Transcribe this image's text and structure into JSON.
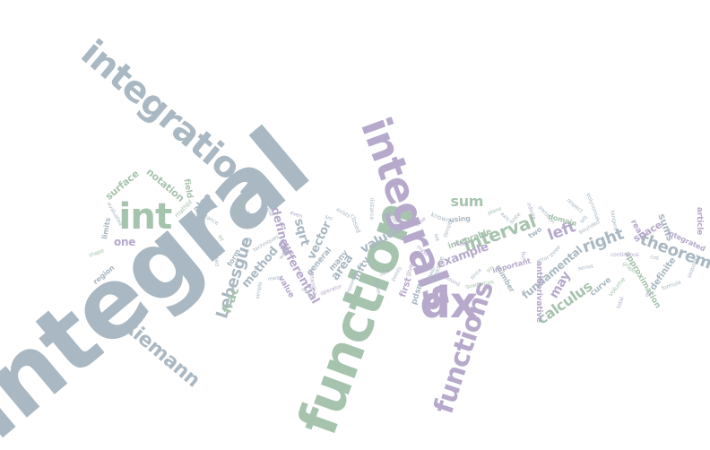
{
  "cloud": {
    "palette": {
      "slate": "#a9b8c2",
      "lavender": "#b6a9cc",
      "sage": "#a6c3ad",
      "slate_light": "#bcc7cf",
      "lavender_light": "#cbbfe0",
      "sage_light": "#c0d6c4"
    },
    "words": [
      {
        "text": "integral",
        "color": "slate"
      },
      {
        "text": "integration",
        "color": "slate"
      },
      {
        "text": "function",
        "color": "sage"
      },
      {
        "text": "integrals",
        "color": "lavender"
      },
      {
        "text": "dx",
        "color": "lavender"
      },
      {
        "text": "functions",
        "color": "lavender"
      },
      {
        "text": "int",
        "color": "sage"
      },
      {
        "text": "Riemann",
        "color": "slate"
      },
      {
        "text": "Lebesgue",
        "color": "slate"
      },
      {
        "text": "interval",
        "color": "sage"
      },
      {
        "text": "left",
        "color": "lavender"
      },
      {
        "text": "right",
        "color": "slate"
      },
      {
        "text": "theorem",
        "color": "slate"
      },
      {
        "text": "calculus",
        "color": "sage"
      },
      {
        "text": "sum",
        "color": "sage"
      },
      {
        "text": "fundamental",
        "color": "slate"
      },
      {
        "text": "frac",
        "color": "sage"
      },
      {
        "text": "method",
        "color": "slate"
      },
      {
        "text": "differential",
        "color": "lavender"
      },
      {
        "text": "defined",
        "color": "lavender"
      },
      {
        "text": "sqrt",
        "color": "slate"
      },
      {
        "text": "vector",
        "color": "slate"
      },
      {
        "text": "values",
        "color": "slate"
      },
      {
        "text": "area",
        "color": "slate"
      },
      {
        "text": "example",
        "color": "lavender"
      },
      {
        "text": "may",
        "color": "lavender"
      },
      {
        "text": "surface",
        "color": "sage"
      },
      {
        "text": "notation",
        "color": "sage"
      },
      {
        "text": "also",
        "color": "slate"
      },
      {
        "text": "one",
        "color": "lavender"
      },
      {
        "text": "first",
        "color": "lavender"
      },
      {
        "text": "infty",
        "color": "slate"
      },
      {
        "text": "space",
        "color": "lavender"
      },
      {
        "text": "sums",
        "color": "slate"
      },
      {
        "text": "antiderivative",
        "color": "lavender"
      },
      {
        "text": "definite",
        "color": "slate"
      },
      {
        "text": "approximation",
        "color": "sage"
      },
      {
        "text": "article",
        "color": "lavender"
      },
      {
        "text": "field",
        "color": "sage"
      },
      {
        "text": "integrable",
        "color": "sage"
      },
      {
        "text": "general",
        "color": "slate"
      },
      {
        "text": "many",
        "color": "slate"
      },
      {
        "text": "value",
        "color": "lavender"
      },
      {
        "text": "pdsn",
        "color": "slate"
      },
      {
        "text": "curve",
        "color": "slate"
      },
      {
        "text": "real",
        "color": "lavender"
      },
      {
        "text": "integrated",
        "color": "lavender"
      },
      {
        "text": "using",
        "color": "slate"
      },
      {
        "text": "domain",
        "color": "sage"
      },
      {
        "text": "region",
        "color": "slate"
      },
      {
        "text": "form",
        "color": "slate"
      },
      {
        "text": "limits",
        "color": "slate"
      },
      {
        "text": "important",
        "color": "lavender"
      },
      {
        "text": "number",
        "color": "slate"
      },
      {
        "text": "two",
        "color": "slate"
      },
      {
        "text": "volume",
        "color": "sage"
      },
      {
        "text": "measure",
        "color": "slate"
      },
      {
        "text": "known",
        "color": "slate"
      },
      {
        "text": "work",
        "color": "lavender"
      },
      {
        "text": "closed",
        "color": "slate"
      },
      {
        "text": "width",
        "color": "slate"
      },
      {
        "text": "given",
        "color": "lavender"
      },
      {
        "text": "mathbf",
        "color": "sage"
      },
      {
        "text": "used",
        "color": "slate"
      },
      {
        "text": "line",
        "color": "slate"
      },
      {
        "text": "lim",
        "color": "slate"
      },
      {
        "text": "rule",
        "color": "slate"
      },
      {
        "text": "case",
        "color": "lavender"
      },
      {
        "text": "points",
        "color": "slate"
      },
      {
        "text": "sin",
        "color": "sage"
      },
      {
        "text": "exists",
        "color": "slate"
      },
      {
        "text": "upper",
        "color": "slate"
      },
      {
        "text": "lower",
        "color": "slate"
      },
      {
        "text": "bound",
        "color": "lavender"
      },
      {
        "text": "partition",
        "color": "slate"
      },
      {
        "text": "finite",
        "color": "slate"
      },
      {
        "text": "infinite",
        "color": "lavender"
      },
      {
        "text": "series",
        "color": "slate"
      },
      {
        "text": "graph",
        "color": "sage"
      },
      {
        "text": "tangent",
        "color": "slate"
      },
      {
        "text": "dy",
        "color": "lavender"
      },
      {
        "text": "cos",
        "color": "slate"
      },
      {
        "text": "log",
        "color": "slate"
      },
      {
        "text": "let",
        "color": "sage"
      },
      {
        "text": "step",
        "color": "slate"
      },
      {
        "text": "even",
        "color": "lavender"
      },
      {
        "text": "simple",
        "color": "slate"
      },
      {
        "text": "point",
        "color": "slate"
      },
      {
        "text": "operator",
        "color": "lavender"
      },
      {
        "text": "distance",
        "color": "slate"
      },
      {
        "text": "quadrature",
        "color": "sage"
      },
      {
        "text": "axis",
        "color": "slate"
      },
      {
        "text": "result",
        "color": "lavender"
      },
      {
        "text": "set",
        "color": "slate"
      },
      {
        "text": "since",
        "color": "slate"
      },
      {
        "text": "bounded",
        "color": "slate"
      },
      {
        "text": "continuous",
        "color": "lavender"
      },
      {
        "text": "sequence",
        "color": "slate"
      },
      {
        "text": "evaluated",
        "color": "slate"
      },
      {
        "text": "shape",
        "color": "sage"
      },
      {
        "text": "terms",
        "color": "slate"
      },
      {
        "text": "mean",
        "color": "slate"
      },
      {
        "text": "rectangles",
        "color": "lavender"
      },
      {
        "text": "choose",
        "color": "slate"
      },
      {
        "text": "rather",
        "color": "slate"
      },
      {
        "text": "plane",
        "color": "sage"
      },
      {
        "text": "flux",
        "color": "lavender"
      },
      {
        "text": "three",
        "color": "slate"
      },
      {
        "text": "respect",
        "color": "slate"
      },
      {
        "text": "total",
        "color": "lavender"
      },
      {
        "text": "formula",
        "color": "slate"
      },
      {
        "text": "instance",
        "color": "slate"
      },
      {
        "text": "variable",
        "color": "sage"
      },
      {
        "text": "techniques",
        "color": "slate"
      },
      {
        "text": "mass",
        "color": "lavender"
      },
      {
        "text": "density",
        "color": "slate"
      },
      {
        "text": "error",
        "color": "slate"
      },
      {
        "text": "polynomial",
        "color": "slate"
      }
    ]
  }
}
